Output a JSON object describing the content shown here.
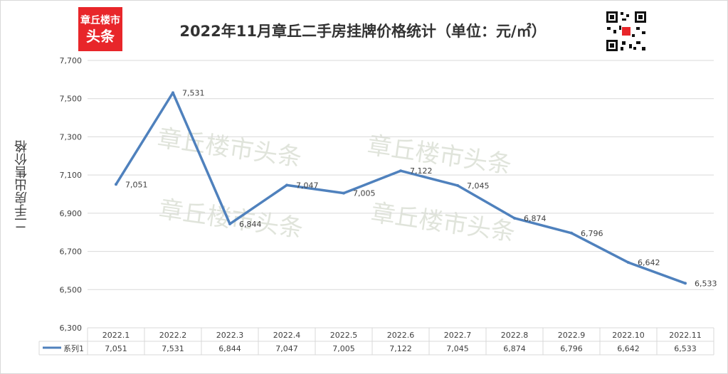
{
  "header": {
    "title": "2022年11月章丘二手房挂牌价格统计（单位：元/㎡）",
    "logo_line1": "章丘楼市",
    "logo_line2": "头条"
  },
  "watermarks": [
    "章丘楼市头条",
    "章丘楼市头条",
    "章丘楼市头条",
    "章丘楼市头条"
  ],
  "colors": {
    "line": "#4f81bd",
    "logo_bg": "#e8262a",
    "grid": "#d9d9d9",
    "watermark": "#c8cfbf"
  },
  "chart_data": {
    "type": "line",
    "title": "2022年11月章丘二手房挂牌价格统计（单位：元/㎡）",
    "xlabel": "",
    "ylabel": "二手房出售价格",
    "categories": [
      "2022.1",
      "2022.2",
      "2022.3",
      "2022.4",
      "2022.5",
      "2022.6",
      "2022.7",
      "2022.8",
      "2022.9",
      "2022.10",
      "2022.11"
    ],
    "series": [
      {
        "name": "系列1",
        "values": [
          7051,
          7531,
          6844,
          7047,
          7005,
          7122,
          7045,
          6874,
          6796,
          6642,
          6533
        ]
      }
    ],
    "value_labels": [
      "7,051",
      "7,531",
      "6,844",
      "7,047",
      "7,005",
      "7,122",
      "7,045",
      "6,874",
      "6,796",
      "6,642",
      "6,533"
    ],
    "ylim": [
      6300,
      7700
    ],
    "yticks": [
      "6,300",
      "6,500",
      "6,700",
      "6,900",
      "7,100",
      "7,300",
      "7,500",
      "7,700"
    ],
    "grid": true,
    "legend": "data-table"
  }
}
